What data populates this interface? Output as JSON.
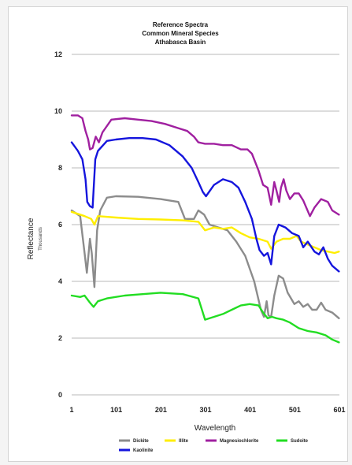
{
  "chart_data": {
    "type": "line",
    "title": [
      "Reference Spectra",
      "Common Mineral Species",
      "Athabasca Basin"
    ],
    "xlabel": "Wavelength",
    "ylabel": "Reflectance",
    "ylabel_sub": "Thousands",
    "xlim": [
      1,
      601
    ],
    "ylim": [
      0,
      12
    ],
    "x_ticks": [
      1,
      101,
      201,
      301,
      401,
      501,
      601
    ],
    "y_ticks": [
      0,
      2,
      4,
      6,
      8,
      10,
      12
    ],
    "grid": "horizontal",
    "legend_position": "bottom",
    "series": [
      {
        "name": "Dickite",
        "color": "#8c8c8c",
        "points": [
          [
            1,
            6.5
          ],
          [
            20,
            6.3
          ],
          [
            30,
            5.0
          ],
          [
            35,
            4.3
          ],
          [
            42,
            5.5
          ],
          [
            46,
            5.0
          ],
          [
            52,
            3.8
          ],
          [
            58,
            5.8
          ],
          [
            65,
            6.5
          ],
          [
            80,
            6.95
          ],
          [
            100,
            7.0
          ],
          [
            150,
            6.98
          ],
          [
            200,
            6.9
          ],
          [
            240,
            6.8
          ],
          [
            255,
            6.2
          ],
          [
            275,
            6.2
          ],
          [
            285,
            6.5
          ],
          [
            298,
            6.35
          ],
          [
            310,
            6.0
          ],
          [
            330,
            5.9
          ],
          [
            350,
            5.8
          ],
          [
            370,
            5.4
          ],
          [
            390,
            4.9
          ],
          [
            410,
            4.0
          ],
          [
            425,
            3.0
          ],
          [
            432,
            2.75
          ],
          [
            438,
            3.3
          ],
          [
            442,
            2.8
          ],
          [
            448,
            2.75
          ],
          [
            455,
            3.5
          ],
          [
            465,
            4.2
          ],
          [
            475,
            4.1
          ],
          [
            485,
            3.6
          ],
          [
            500,
            3.2
          ],
          [
            510,
            3.3
          ],
          [
            520,
            3.1
          ],
          [
            530,
            3.2
          ],
          [
            540,
            3.0
          ],
          [
            550,
            3.0
          ],
          [
            560,
            3.25
          ],
          [
            570,
            3.0
          ],
          [
            585,
            2.9
          ],
          [
            600,
            2.7
          ]
        ]
      },
      {
        "name": "Illite",
        "color": "#ffee00",
        "points": [
          [
            1,
            6.45
          ],
          [
            30,
            6.3
          ],
          [
            45,
            6.2
          ],
          [
            52,
            6.0
          ],
          [
            60,
            6.3
          ],
          [
            100,
            6.25
          ],
          [
            150,
            6.2
          ],
          [
            200,
            6.18
          ],
          [
            250,
            6.15
          ],
          [
            285,
            6.1
          ],
          [
            300,
            5.8
          ],
          [
            320,
            5.9
          ],
          [
            340,
            5.85
          ],
          [
            360,
            5.9
          ],
          [
            380,
            5.7
          ],
          [
            400,
            5.55
          ],
          [
            420,
            5.5
          ],
          [
            440,
            5.4
          ],
          [
            448,
            5.15
          ],
          [
            460,
            5.4
          ],
          [
            475,
            5.5
          ],
          [
            490,
            5.5
          ],
          [
            505,
            5.6
          ],
          [
            515,
            5.4
          ],
          [
            530,
            5.3
          ],
          [
            545,
            5.2
          ],
          [
            560,
            5.1
          ],
          [
            575,
            5.05
          ],
          [
            590,
            5.0
          ],
          [
            600,
            5.05
          ]
        ]
      },
      {
        "name": "Magnesiochlorite",
        "color": "#a020a0",
        "points": [
          [
            1,
            9.85
          ],
          [
            15,
            9.85
          ],
          [
            25,
            9.75
          ],
          [
            32,
            9.3
          ],
          [
            38,
            9.0
          ],
          [
            42,
            8.65
          ],
          [
            48,
            8.7
          ],
          [
            55,
            9.1
          ],
          [
            62,
            8.9
          ],
          [
            70,
            9.25
          ],
          [
            90,
            9.7
          ],
          [
            120,
            9.75
          ],
          [
            150,
            9.7
          ],
          [
            180,
            9.65
          ],
          [
            210,
            9.55
          ],
          [
            240,
            9.4
          ],
          [
            260,
            9.3
          ],
          [
            275,
            9.1
          ],
          [
            285,
            8.9
          ],
          [
            300,
            8.85
          ],
          [
            320,
            8.85
          ],
          [
            340,
            8.8
          ],
          [
            360,
            8.8
          ],
          [
            380,
            8.65
          ],
          [
            395,
            8.65
          ],
          [
            405,
            8.5
          ],
          [
            420,
            7.9
          ],
          [
            430,
            7.4
          ],
          [
            440,
            7.3
          ],
          [
            448,
            6.7
          ],
          [
            455,
            7.5
          ],
          [
            460,
            7.2
          ],
          [
            466,
            6.8
          ],
          [
            470,
            7.3
          ],
          [
            476,
            7.6
          ],
          [
            482,
            7.2
          ],
          [
            490,
            6.9
          ],
          [
            500,
            7.1
          ],
          [
            510,
            7.1
          ],
          [
            520,
            6.85
          ],
          [
            535,
            6.3
          ],
          [
            545,
            6.6
          ],
          [
            560,
            6.9
          ],
          [
            575,
            6.8
          ],
          [
            585,
            6.5
          ],
          [
            600,
            6.35
          ]
        ]
      },
      {
        "name": "Sudoite",
        "color": "#22dd22",
        "points": [
          [
            1,
            3.5
          ],
          [
            20,
            3.45
          ],
          [
            30,
            3.5
          ],
          [
            42,
            3.25
          ],
          [
            50,
            3.1
          ],
          [
            60,
            3.3
          ],
          [
            80,
            3.4
          ],
          [
            120,
            3.5
          ],
          [
            160,
            3.55
          ],
          [
            200,
            3.6
          ],
          [
            250,
            3.55
          ],
          [
            285,
            3.4
          ],
          [
            300,
            2.65
          ],
          [
            320,
            2.75
          ],
          [
            340,
            2.85
          ],
          [
            360,
            3.0
          ],
          [
            380,
            3.15
          ],
          [
            400,
            3.2
          ],
          [
            420,
            3.15
          ],
          [
            430,
            2.9
          ],
          [
            440,
            2.7
          ],
          [
            450,
            2.75
          ],
          [
            460,
            2.7
          ],
          [
            475,
            2.65
          ],
          [
            490,
            2.55
          ],
          [
            510,
            2.35
          ],
          [
            530,
            2.25
          ],
          [
            550,
            2.2
          ],
          [
            570,
            2.1
          ],
          [
            585,
            1.95
          ],
          [
            600,
            1.85
          ]
        ]
      },
      {
        "name": "Kaolinite",
        "color": "#1515dd",
        "points": [
          [
            1,
            8.9
          ],
          [
            15,
            8.6
          ],
          [
            25,
            8.3
          ],
          [
            32,
            7.6
          ],
          [
            36,
            6.8
          ],
          [
            42,
            6.65
          ],
          [
            48,
            6.6
          ],
          [
            54,
            8.3
          ],
          [
            60,
            8.6
          ],
          [
            80,
            8.95
          ],
          [
            100,
            9.0
          ],
          [
            130,
            9.05
          ],
          [
            160,
            9.05
          ],
          [
            190,
            9.0
          ],
          [
            220,
            8.8
          ],
          [
            250,
            8.4
          ],
          [
            270,
            8.0
          ],
          [
            285,
            7.5
          ],
          [
            295,
            7.15
          ],
          [
            302,
            7.0
          ],
          [
            320,
            7.4
          ],
          [
            340,
            7.6
          ],
          [
            360,
            7.5
          ],
          [
            375,
            7.3
          ],
          [
            390,
            6.8
          ],
          [
            405,
            6.2
          ],
          [
            415,
            5.5
          ],
          [
            422,
            5.1
          ],
          [
            432,
            4.9
          ],
          [
            440,
            5.0
          ],
          [
            448,
            4.6
          ],
          [
            455,
            5.6
          ],
          [
            465,
            6.0
          ],
          [
            480,
            5.9
          ],
          [
            495,
            5.7
          ],
          [
            510,
            5.6
          ],
          [
            520,
            5.2
          ],
          [
            530,
            5.4
          ],
          [
            545,
            5.05
          ],
          [
            555,
            4.95
          ],
          [
            565,
            5.2
          ],
          [
            575,
            4.8
          ],
          [
            585,
            4.55
          ],
          [
            600,
            4.35
          ]
        ]
      }
    ]
  }
}
